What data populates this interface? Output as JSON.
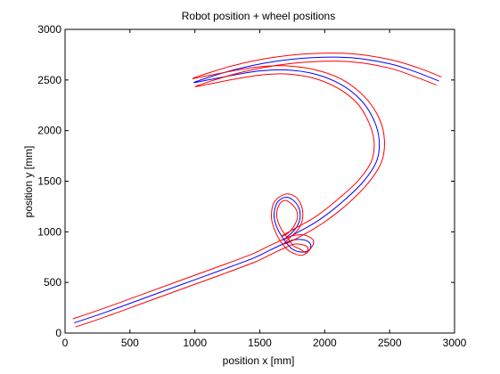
{
  "chart_data": {
    "type": "line",
    "title": "Robot position + wheel positions",
    "xlabel": "position x [mm]",
    "ylabel": "position y [mm]",
    "xlim": [
      0,
      3000
    ],
    "ylim": [
      0,
      3000
    ],
    "xticks": [
      0,
      500,
      1000,
      1500,
      2000,
      2500,
      3000
    ],
    "yticks": [
      0,
      500,
      1000,
      1500,
      2000,
      2500,
      3000
    ],
    "grid": false,
    "series": [
      {
        "color": "#0000ff",
        "x": [
          70,
          300,
          600,
          900,
          1200,
          1450,
          1580,
          1680,
          1760,
          1840,
          1890,
          1880,
          1820,
          1750,
          1700,
          1640,
          1610,
          1630,
          1690,
          1750,
          1800,
          1810,
          1780,
          1720,
          1680,
          1800,
          1960,
          2140,
          2300,
          2400,
          2420,
          2380,
          2280,
          2120,
          1920,
          1700,
          1500,
          1300,
          1100,
          1000,
          1300,
          1600,
          1900,
          2200,
          2500,
          2700,
          2880
        ],
        "y": [
          100,
          200,
          340,
          480,
          620,
          740,
          820,
          880,
          920,
          920,
          880,
          820,
          800,
          830,
          900,
          1020,
          1150,
          1280,
          1340,
          1320,
          1240,
          1140,
          1040,
          960,
          920,
          1000,
          1120,
          1300,
          1500,
          1700,
          1900,
          2100,
          2300,
          2460,
          2560,
          2600,
          2590,
          2550,
          2500,
          2480,
          2600,
          2680,
          2720,
          2720,
          2660,
          2580,
          2490
        ]
      },
      {
        "color": "#ff0000",
        "x": [
          60,
          290,
          590,
          890,
          1190,
          1440,
          1570,
          1670,
          1750,
          1840,
          1910,
          1900,
          1830,
          1740,
          1680,
          1620,
          1590,
          1610,
          1690,
          1770,
          1820,
          1830,
          1800,
          1730,
          1690,
          1820,
          1990,
          2180,
          2340,
          2440,
          2460,
          2420,
          2310,
          2140,
          1930,
          1700,
          1490,
          1290,
          1090,
          990,
          1290,
          1590,
          1890,
          2200,
          2510,
          2720,
          2900
        ],
        "y": [
          140,
          240,
          380,
          520,
          660,
          780,
          860,
          920,
          960,
          970,
          920,
          850,
          770,
          800,
          870,
          1000,
          1140,
          1290,
          1370,
          1350,
          1260,
          1140,
          1030,
          940,
          880,
          960,
          1090,
          1280,
          1490,
          1700,
          1910,
          2120,
          2330,
          2500,
          2600,
          2640,
          2630,
          2590,
          2540,
          2520,
          2640,
          2720,
          2760,
          2760,
          2700,
          2620,
          2530
        ]
      },
      {
        "color": "#ff0000",
        "x": [
          80,
          310,
          610,
          910,
          1210,
          1460,
          1590,
          1690,
          1770,
          1840,
          1870,
          1860,
          1810,
          1760,
          1720,
          1660,
          1630,
          1650,
          1690,
          1730,
          1780,
          1790,
          1760,
          1710,
          1670,
          1780,
          1930,
          2100,
          2260,
          2360,
          2380,
          2340,
          2250,
          2100,
          1910,
          1700,
          1510,
          1310,
          1110,
          1010,
          1310,
          1610,
          1910,
          2200,
          2490,
          2680,
          2860
        ],
        "y": [
          60,
          160,
          300,
          440,
          580,
          700,
          780,
          840,
          880,
          870,
          840,
          790,
          830,
          860,
          930,
          1040,
          1160,
          1270,
          1310,
          1290,
          1220,
          1140,
          1050,
          980,
          960,
          1040,
          1150,
          1320,
          1510,
          1700,
          1890,
          2080,
          2270,
          2420,
          2520,
          2560,
          2550,
          2510,
          2460,
          2440,
          2560,
          2640,
          2680,
          2680,
          2620,
          2540,
          2450
        ]
      }
    ]
  }
}
